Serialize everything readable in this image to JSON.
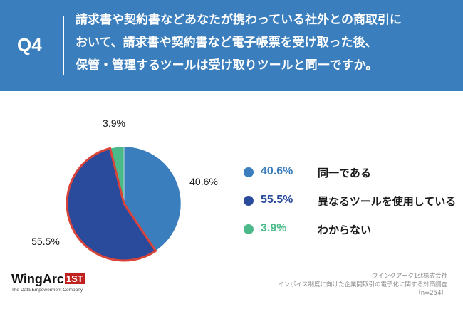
{
  "header": {
    "q_label": "Q4",
    "question_lines": [
      "請求書や契約書などあなたが携わっている社外との商取引に",
      "おいて、請求書や契約書など電子帳票を受け取った後、",
      "保管・管理するツールは受け取りツールと同一ですか。"
    ]
  },
  "chart_data": {
    "type": "pie",
    "title": "",
    "categories": [
      "同一である",
      "異なるツールを使用している",
      "わからない"
    ],
    "values": [
      40.6,
      55.5,
      3.9
    ],
    "value_labels": [
      "40.6%",
      "55.5%",
      "3.9%"
    ],
    "colors": [
      "#3a7ebd",
      "#2a4a9c",
      "#4cb98a"
    ],
    "highlight_border_color": "#d9433a",
    "highlighted_category": "異なるツールを使用している",
    "legend_placement": "right"
  },
  "legend": {
    "items": [
      {
        "pct": "40.6%",
        "label": "同一である",
        "color": "#3a7ebd"
      },
      {
        "pct": "55.5%",
        "label": "異なるツールを使用している",
        "color": "#2a4a9c"
      },
      {
        "pct": "3.9%",
        "label": "わからない",
        "color": "#4cb98a"
      }
    ]
  },
  "footer": {
    "logo_text": "WingArc",
    "logo_badge": "1ST",
    "logo_tagline": "The Data Empowerment Company",
    "source_lines": [
      "ウイングアーク1st株式会社",
      "インボイス制度に向けた企業間取引の電子化に関する対策調査",
      "（n=254）"
    ]
  }
}
